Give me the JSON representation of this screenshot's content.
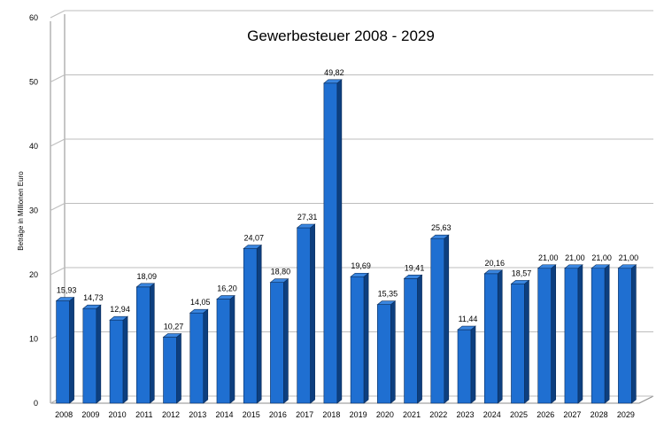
{
  "chart_data": {
    "type": "bar",
    "title": "Gewerbesteuer 2008 - 2029",
    "xlabel": "",
    "ylabel": "Beträge in Millionen Euro",
    "ylim": [
      0,
      60
    ],
    "yticks": [
      0,
      10,
      20,
      30,
      40,
      50,
      60
    ],
    "grid": true,
    "categories": [
      "2008",
      "2009",
      "2010",
      "2011",
      "2012",
      "2013",
      "2014",
      "2015",
      "2016",
      "2017",
      "2018",
      "2019",
      "2020",
      "2021",
      "2022",
      "2023",
      "2024",
      "2025",
      "2026",
      "2027",
      "2028",
      "2029"
    ],
    "values": [
      15.93,
      14.73,
      12.94,
      18.09,
      10.27,
      14.05,
      16.2,
      24.07,
      18.8,
      27.31,
      49.82,
      19.69,
      15.35,
      19.41,
      25.63,
      11.44,
      20.16,
      18.57,
      21.0,
      21.0,
      21.0,
      21.0
    ],
    "value_labels": [
      "15,93",
      "14,73",
      "12,94",
      "18,09",
      "10,27",
      "14,05",
      "16,20",
      "24,07",
      "18,80",
      "27,31",
      "49,82",
      "19,69",
      "15,35",
      "19,41",
      "25,63",
      "11,44",
      "20,16",
      "18,57",
      "21,00",
      "21,00",
      "21,00",
      "21,00"
    ],
    "colors": {
      "bar_front": "#1f6fd1",
      "bar_side": "#0d3f7f",
      "bar_top": "#3a86e0",
      "bar_outline": "#0a2c5a",
      "grid": "#bdbdbd",
      "axis": "#8c8c8c"
    }
  }
}
